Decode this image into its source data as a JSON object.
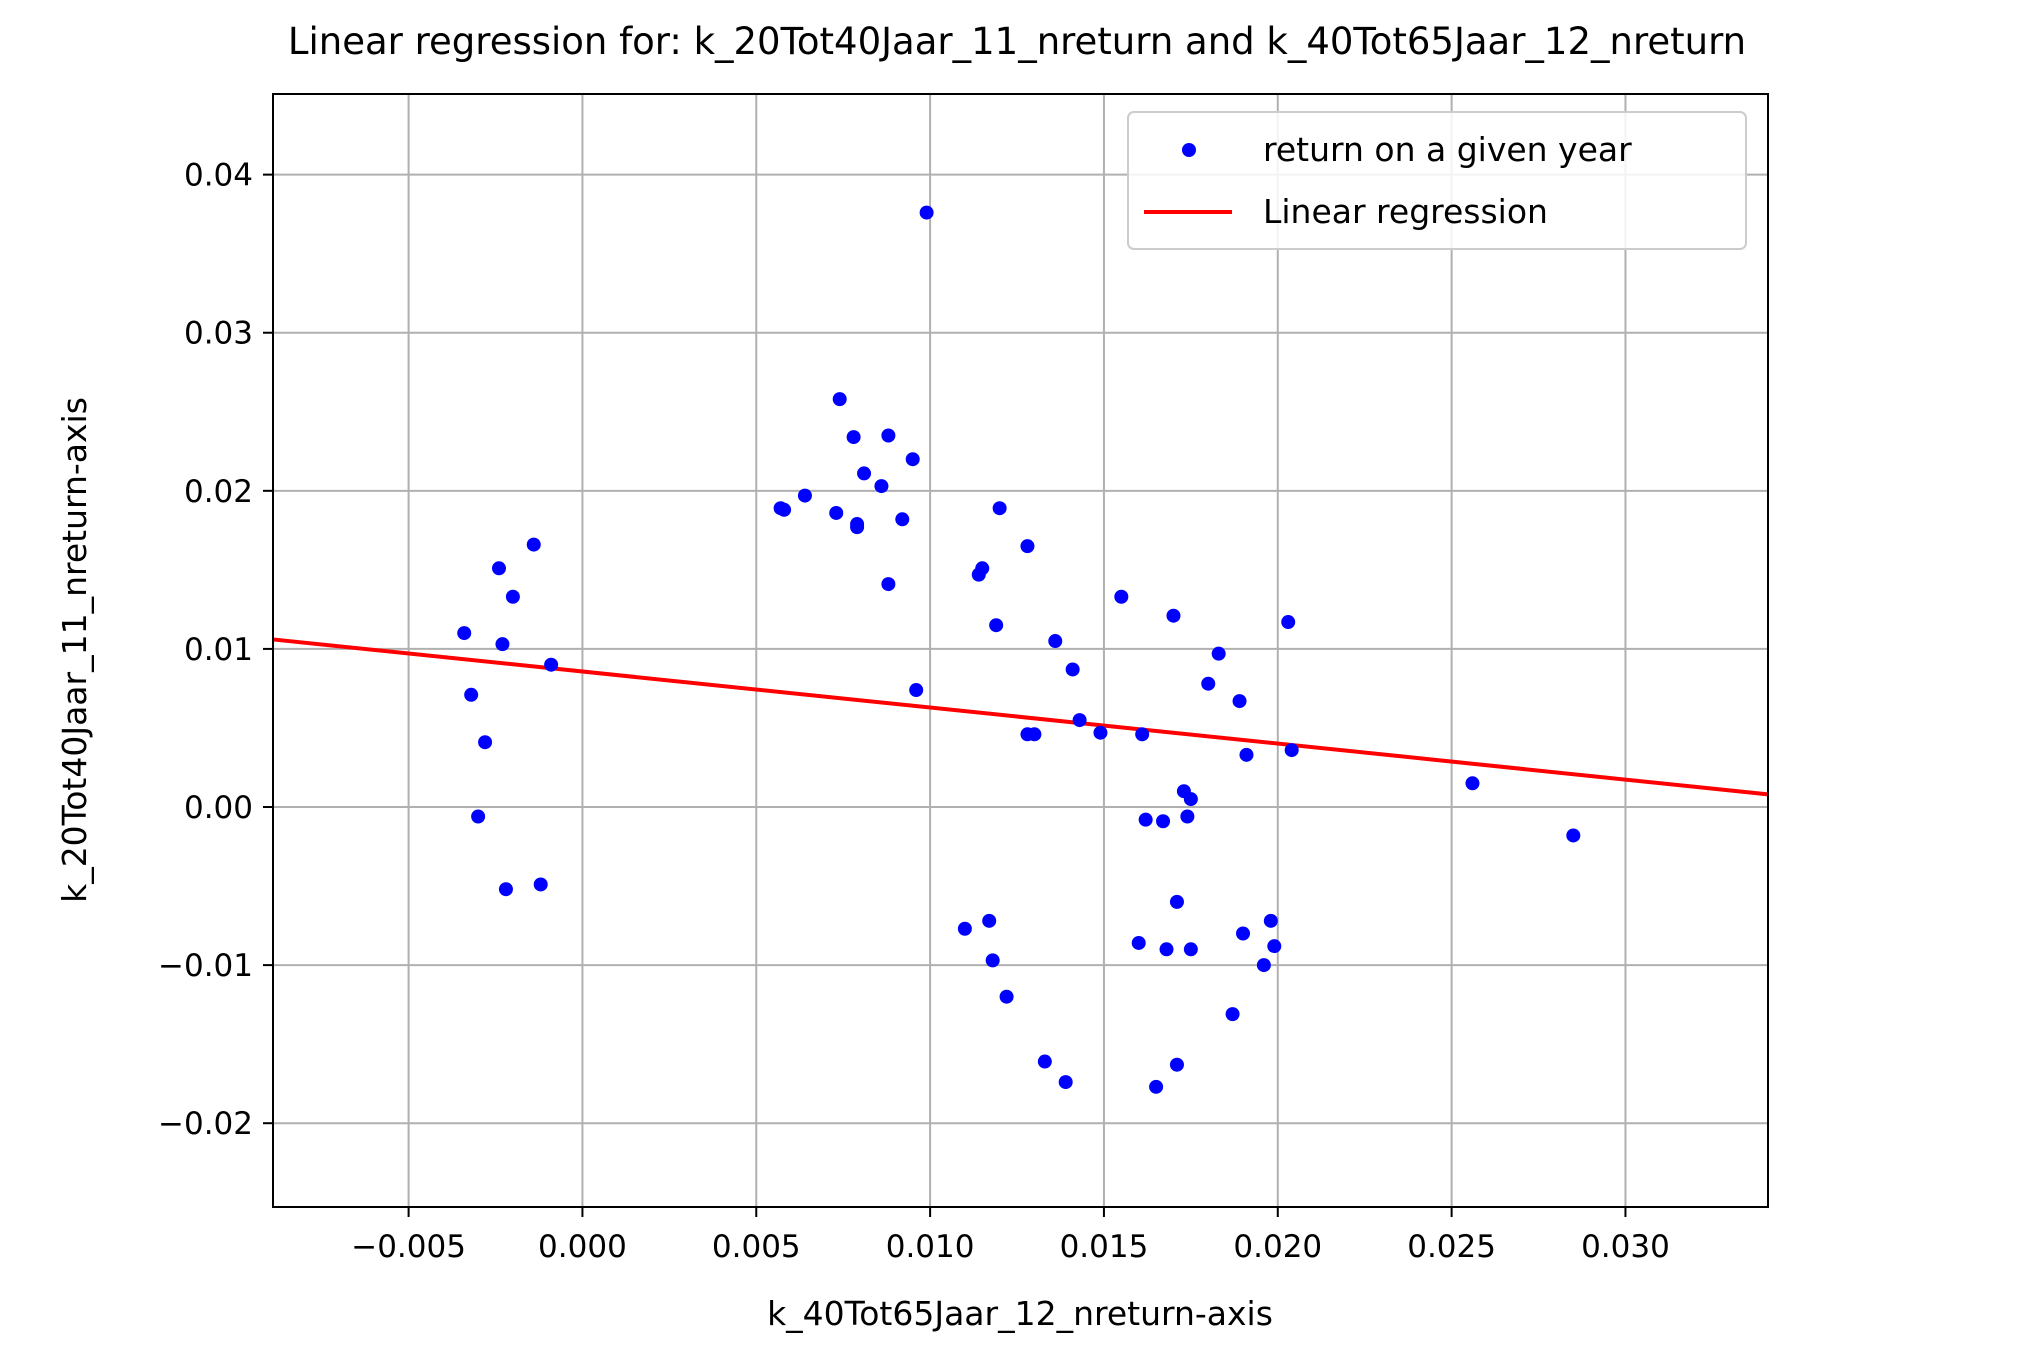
{
  "chart_data": {
    "type": "scatter",
    "title": "Linear regression for: k_20Tot40Jaar_11_nreturn and k_40Tot65Jaar_12_nreturn",
    "xlabel": "k_40Tot65Jaar_12_nreturn-axis",
    "ylabel": "k_20Tot40Jaar_11_nreturn-axis",
    "xlim": [
      -0.0089,
      0.0341
    ],
    "ylim": [
      -0.0253,
      0.0451
    ],
    "x_ticks": [
      -0.005,
      0.0,
      0.005,
      0.01,
      0.015,
      0.02,
      0.025,
      0.03
    ],
    "x_tick_labels": [
      "−0.005",
      "0.000",
      "0.005",
      "0.010",
      "0.015",
      "0.020",
      "0.025",
      "0.030"
    ],
    "y_ticks": [
      -0.02,
      -0.01,
      0.0,
      0.01,
      0.02,
      0.03,
      0.04
    ],
    "y_tick_labels": [
      "−0.02",
      "−0.01",
      "0.00",
      "0.01",
      "0.02",
      "0.03",
      "0.04"
    ],
    "grid": true,
    "legend_position": "top-right",
    "colors": {
      "points": "#0000ff",
      "line": "#ff0000",
      "grid": "#b0b0b0",
      "axes": "#000000"
    },
    "series": [
      {
        "name": "return on a given year",
        "type": "scatter",
        "points": [
          [
            -0.0034,
            0.011
          ],
          [
            -0.0032,
            0.0071
          ],
          [
            -0.003,
            -0.0006
          ],
          [
            -0.0028,
            0.0041
          ],
          [
            -0.0024,
            0.0151
          ],
          [
            -0.0023,
            0.0103
          ],
          [
            -0.0022,
            -0.0052
          ],
          [
            -0.002,
            0.0133
          ],
          [
            -0.0014,
            0.0166
          ],
          [
            -0.0012,
            -0.0049
          ],
          [
            -0.0009,
            0.009
          ],
          [
            0.0057,
            0.0189
          ],
          [
            0.0058,
            0.0188
          ],
          [
            0.0064,
            0.0197
          ],
          [
            0.0073,
            0.0186
          ],
          [
            0.0074,
            0.0258
          ],
          [
            0.0078,
            0.0234
          ],
          [
            0.0079,
            0.0179
          ],
          [
            0.0079,
            0.0177
          ],
          [
            0.0081,
            0.0211
          ],
          [
            0.0086,
            0.0203
          ],
          [
            0.0088,
            0.0235
          ],
          [
            0.0088,
            0.0141
          ],
          [
            0.0092,
            0.0182
          ],
          [
            0.0095,
            0.022
          ],
          [
            0.0096,
            0.0074
          ],
          [
            0.0099,
            0.0376
          ],
          [
            0.011,
            -0.0077
          ],
          [
            0.0114,
            0.0147
          ],
          [
            0.0115,
            0.0151
          ],
          [
            0.0117,
            -0.0072
          ],
          [
            0.0118,
            -0.0097
          ],
          [
            0.0119,
            0.0115
          ],
          [
            0.012,
            0.0189
          ],
          [
            0.0122,
            -0.012
          ],
          [
            0.0128,
            0.0165
          ],
          [
            0.0128,
            0.0046
          ],
          [
            0.013,
            0.0046
          ],
          [
            0.0133,
            -0.0161
          ],
          [
            0.0136,
            0.0105
          ],
          [
            0.0139,
            -0.0174
          ],
          [
            0.0141,
            0.0087
          ],
          [
            0.0143,
            0.0055
          ],
          [
            0.0149,
            0.0047
          ],
          [
            0.0155,
            0.0133
          ],
          [
            0.016,
            -0.0086
          ],
          [
            0.0161,
            0.0046
          ],
          [
            0.0162,
            -0.0008
          ],
          [
            0.0165,
            -0.0177
          ],
          [
            0.0167,
            -0.0009
          ],
          [
            0.0168,
            -0.009
          ],
          [
            0.017,
            0.0121
          ],
          [
            0.0171,
            -0.0163
          ],
          [
            0.0171,
            -0.006
          ],
          [
            0.0173,
            0.001
          ],
          [
            0.0174,
            -0.0006
          ],
          [
            0.0175,
            0.0005
          ],
          [
            0.0175,
            -0.009
          ],
          [
            0.018,
            0.0078
          ],
          [
            0.0183,
            0.0097
          ],
          [
            0.0187,
            -0.0131
          ],
          [
            0.0189,
            0.0067
          ],
          [
            0.019,
            -0.008
          ],
          [
            0.0191,
            0.0033
          ],
          [
            0.0196,
            -0.01
          ],
          [
            0.0198,
            -0.0072
          ],
          [
            0.0199,
            -0.0088
          ],
          [
            0.0203,
            0.0117
          ],
          [
            0.0204,
            0.0036
          ],
          [
            0.0256,
            0.0015
          ],
          [
            0.0285,
            -0.0018
          ]
        ]
      },
      {
        "name": "Linear regression",
        "type": "line",
        "points": [
          [
            -0.0089,
            0.0106
          ],
          [
            0.0341,
            0.0008
          ]
        ]
      }
    ]
  }
}
